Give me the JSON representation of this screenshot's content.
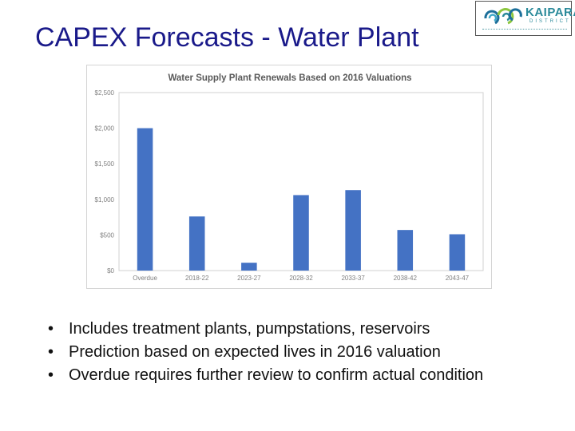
{
  "slide": {
    "title": "CAPEX Forecasts - Water Plant",
    "bullets": [
      "Includes treatment plants, pumpstations, reservoirs",
      "Prediction based on expected lives in 2016 valuation",
      "Overdue requires further review to confirm actual condition"
    ]
  },
  "logo": {
    "name": "KAIPARA",
    "sub": "DISTRICT"
  },
  "colors": {
    "title": "#1a1a8a",
    "bar": "#4472c4",
    "logo_teal": "#2a8a9a"
  },
  "chart_data": {
    "type": "bar",
    "title": "Water Supply Plant Renewals Based on 2016 Valuations",
    "categories": [
      "Overdue",
      "2018-22",
      "2023-27",
      "2028-32",
      "2033-37",
      "2038-42",
      "2043-47"
    ],
    "values": [
      2000,
      760,
      110,
      1060,
      1130,
      570,
      510
    ],
    "ylim": [
      0,
      2500
    ],
    "yticks": [
      0,
      500,
      1000,
      1500,
      2000,
      2500
    ],
    "ytick_labels": [
      "$0",
      "$500",
      "$1,000",
      "$1,500",
      "$2,000",
      "$2,500"
    ],
    "xlabel": "",
    "ylabel": "",
    "grid": false
  }
}
